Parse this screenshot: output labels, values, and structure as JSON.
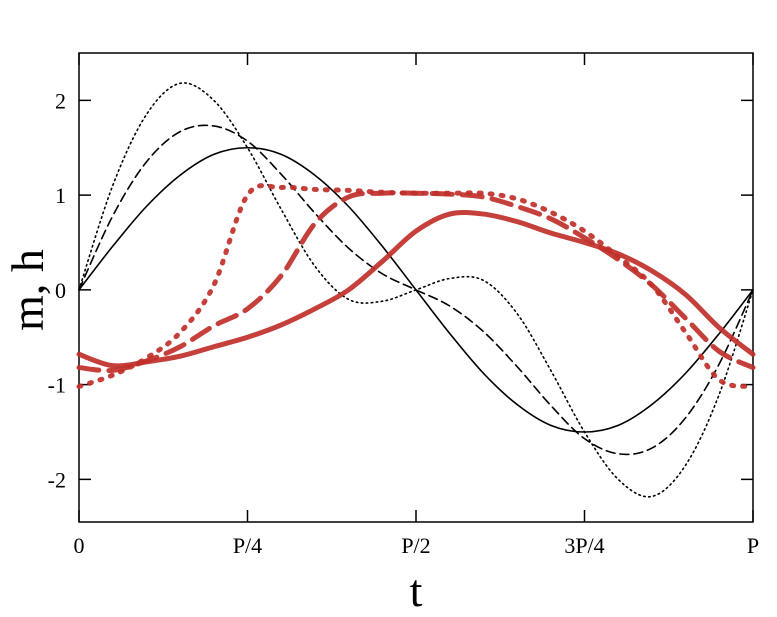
{
  "chart_data": {
    "type": "line",
    "title": "",
    "xlabel": "t",
    "ylabel": "m, h",
    "xlim": [
      0,
      1
    ],
    "ylim": [
      -2.45,
      2.5
    ],
    "x_ticks": [
      {
        "value": 0,
        "label": "0"
      },
      {
        "value": 0.25,
        "label": "P/4"
      },
      {
        "value": 0.5,
        "label": "P/2"
      },
      {
        "value": 0.75,
        "label": "3P/4"
      },
      {
        "value": 1,
        "label": "P"
      }
    ],
    "y_ticks": [
      {
        "value": -2,
        "label": "-2"
      },
      {
        "value": -1,
        "label": "-1"
      },
      {
        "value": 0,
        "label": "0"
      },
      {
        "value": 1,
        "label": "1"
      },
      {
        "value": 2,
        "label": "2"
      }
    ],
    "grid": false,
    "legend": "none",
    "x": [
      0,
      0.05,
      0.1,
      0.15,
      0.2,
      0.25,
      0.3,
      0.35,
      0.4,
      0.45,
      0.5,
      0.55,
      0.6,
      0.65,
      0.7,
      0.75,
      0.8,
      0.85,
      0.9,
      0.95,
      1.0
    ],
    "series": [
      {
        "style": "solid",
        "color": "#000000",
        "values": [
          0,
          0.46,
          0.88,
          1.21,
          1.43,
          1.5,
          1.43,
          1.21,
          0.88,
          0.46,
          0,
          -0.46,
          -0.88,
          -1.21,
          -1.43,
          -1.5,
          -1.43,
          -1.21,
          -0.88,
          -0.46,
          0
        ]
      },
      {
        "style": "dashed",
        "color": "#000000",
        "values": [
          0,
          0.78,
          1.35,
          1.67,
          1.73,
          1.57,
          1.22,
          0.81,
          0.44,
          0.17,
          0,
          -0.17,
          -0.44,
          -0.81,
          -1.22,
          -1.57,
          -1.73,
          -1.67,
          -1.35,
          -0.78,
          0
        ]
      },
      {
        "style": "dotted",
        "color": "#000000",
        "values": [
          0,
          1.1,
          1.85,
          2.18,
          2.0,
          1.5,
          0.85,
          0.25,
          -0.1,
          -0.12,
          0,
          0.12,
          0.1,
          -0.25,
          -0.85,
          -1.5,
          -2.0,
          -2.18,
          -1.85,
          -1.1,
          0
        ]
      },
      {
        "style": "solid",
        "color": "#c0302a",
        "values": [
          -0.68,
          -0.8,
          -0.76,
          -0.7,
          -0.6,
          -0.5,
          -0.37,
          -0.2,
          0,
          0.3,
          0.62,
          0.8,
          0.8,
          0.72,
          0.6,
          0.5,
          0.38,
          0.2,
          -0.05,
          -0.4,
          -0.68
        ]
      },
      {
        "style": "dashed",
        "color": "#c0302a",
        "values": [
          -0.82,
          -0.85,
          -0.75,
          -0.6,
          -0.38,
          -0.2,
          0.15,
          0.7,
          0.98,
          1.02,
          1.02,
          1.01,
          0.98,
          0.88,
          0.75,
          0.55,
          0.32,
          0.05,
          -0.3,
          -0.65,
          -0.82
        ]
      },
      {
        "style": "dotted",
        "color": "#c0302a",
        "values": [
          -1.02,
          -0.9,
          -0.72,
          -0.45,
          0.05,
          1.0,
          1.08,
          1.06,
          1.05,
          1.03,
          1.02,
          1.02,
          1.02,
          0.96,
          0.82,
          0.62,
          0.35,
          0.05,
          -0.45,
          -0.95,
          -1.02
        ]
      }
    ]
  }
}
